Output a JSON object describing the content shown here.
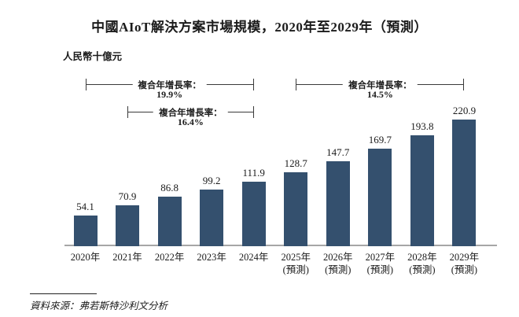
{
  "title": "中國AIoT解決方案市場規模，2020年至2029年（預測）",
  "unit_label": "人民幣十億元",
  "source": "資料來源：弗若斯特沙利文分析",
  "chart_data": {
    "type": "bar",
    "title": "中國AIoT解決方案市場規模，2020年至2029年（預測）",
    "ylabel": "人民幣十億元",
    "categories": [
      "2020年",
      "2021年",
      "2022年",
      "2023年",
      "2024年",
      "2025年",
      "2026年",
      "2027年",
      "2028年",
      "2029年"
    ],
    "category_sublabels": [
      "",
      "",
      "",
      "",
      "",
      "(預測)",
      "(預測)",
      "(預測)",
      "(預測)",
      "(預測)"
    ],
    "values": [
      54.1,
      70.9,
      86.8,
      99.2,
      111.9,
      128.7,
      147.7,
      169.7,
      193.8,
      220.9
    ],
    "ylim": [
      0,
      225
    ],
    "grid": false,
    "y_axis_visible": false,
    "bar_color": "#34506e",
    "annotations": [
      {
        "label": "複合年增長率：",
        "value": "19.9%",
        "from_index": 0,
        "to_index": 4,
        "row": 0
      },
      {
        "label": "複合年增長率：",
        "value": "16.4%",
        "from_index": 1,
        "to_index": 4,
        "row": 1
      },
      {
        "label": "複合年增長率：",
        "value": "14.5%",
        "from_index": 5,
        "to_index": 9,
        "row": 0
      }
    ]
  }
}
